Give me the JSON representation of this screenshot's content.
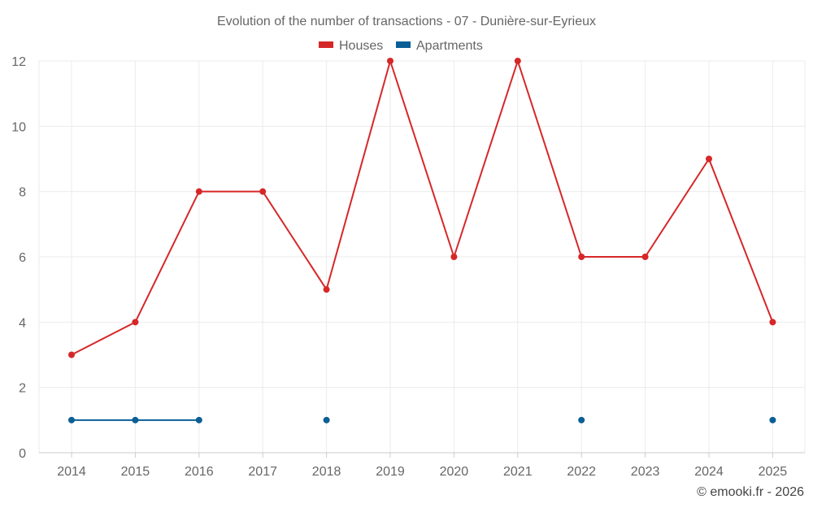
{
  "chart_data": {
    "type": "line",
    "title": "Evolution of the number of transactions - 07 - Dunière-sur-Eyrieux",
    "xlabel": "",
    "ylabel": "",
    "categories": [
      "2014",
      "2015",
      "2016",
      "2017",
      "2018",
      "2019",
      "2020",
      "2021",
      "2022",
      "2023",
      "2024",
      "2025"
    ],
    "ylim": [
      0,
      12
    ],
    "yticks": [
      0,
      2,
      4,
      6,
      8,
      10,
      12
    ],
    "grid": true,
    "legend_position": "top-center",
    "series": [
      {
        "name": "Houses",
        "color": "#d62728",
        "values": [
          3,
          4,
          8,
          8,
          5,
          12,
          6,
          12,
          6,
          6,
          9,
          4
        ]
      },
      {
        "name": "Apartments",
        "color": "#0a5f96",
        "values": [
          1,
          1,
          1,
          null,
          1,
          null,
          null,
          null,
          1,
          null,
          null,
          1
        ]
      }
    ],
    "credit": "© emooki.fr - 2026"
  }
}
